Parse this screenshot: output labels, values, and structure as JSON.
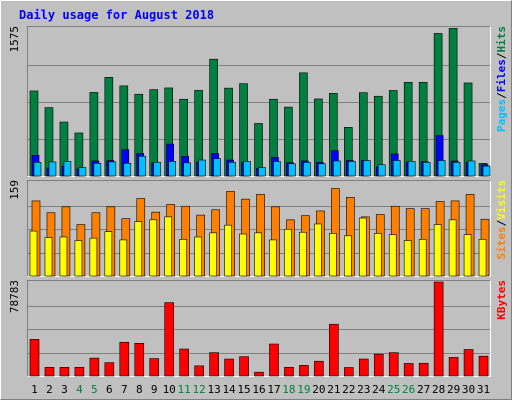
{
  "title": "Daily usage for August 2018",
  "colors": {
    "background": "#C0C0C0",
    "title": "#0000FF",
    "hits": "#008040",
    "files": "#0000FF",
    "pages": "#00C0FF",
    "visits": "#FFFF00",
    "sites": "#FF8000",
    "kbytes": "#FF0000",
    "weekend_day_label": "#008040",
    "weekday_label": "#000000"
  },
  "chart_data": [
    {
      "type": "bar",
      "name": "hits-files-pages",
      "y_max_label": "1575",
      "ylim": [
        0,
        1575
      ],
      "grid": true,
      "legend": "right (vertical)",
      "legend_entries": [
        {
          "text": "Pages",
          "color": "#00C0FF"
        },
        {
          "text": "Files",
          "color": "#0000FF"
        },
        {
          "text": "Hits",
          "color": "#008040"
        }
      ],
      "categories": [
        "1",
        "2",
        "3",
        "4",
        "5",
        "6",
        "7",
        "8",
        "9",
        "10",
        "11",
        "12",
        "13",
        "14",
        "15",
        "16",
        "17",
        "18",
        "19",
        "20",
        "21",
        "22",
        "23",
        "24",
        "25",
        "26",
        "27",
        "28",
        "29",
        "30",
        "31"
      ],
      "series": [
        {
          "name": "Hits",
          "values": [
            905,
            728,
            574,
            458,
            889,
            1050,
            959,
            870,
            919,
            937,
            817,
            911,
            1243,
            935,
            983,
            559,
            817,
            733,
            1098,
            820,
            880,
            518,
            887,
            849,
            910,
            997,
            997,
            1517,
            1571,
            990,
            135
          ]
        },
        {
          "name": "Files",
          "values": [
            220,
            85,
            105,
            75,
            160,
            165,
            280,
            240,
            140,
            340,
            210,
            148,
            240,
            170,
            145,
            80,
            198,
            142,
            160,
            145,
            270,
            165,
            165,
            100,
            235,
            150,
            152,
            430,
            160,
            145,
            120
          ]
        },
        {
          "name": "Pages",
          "values": [
            145,
            150,
            155,
            90,
            135,
            150,
            135,
            210,
            145,
            155,
            140,
            170,
            185,
            145,
            155,
            90,
            155,
            130,
            145,
            130,
            160,
            155,
            165,
            120,
            165,
            155,
            145,
            165,
            145,
            160,
            105
          ]
        }
      ]
    },
    {
      "type": "bar",
      "name": "visits-sites",
      "y_max_label": "159",
      "ylim": [
        0,
        159
      ],
      "grid": true,
      "legend": "right (vertical)",
      "legend_entries": [
        {
          "text": "Sites",
          "color": "#FF8000"
        },
        {
          "text": "Visits",
          "color": "#FFFF00"
        }
      ],
      "categories": [
        "1",
        "2",
        "3",
        "4",
        "5",
        "6",
        "7",
        "8",
        "9",
        "10",
        "11",
        "12",
        "13",
        "14",
        "15",
        "16",
        "17",
        "18",
        "19",
        "20",
        "21",
        "22",
        "23",
        "24",
        "25",
        "26",
        "27",
        "28",
        "29",
        "30",
        "31"
      ],
      "series": [
        {
          "name": "Sites",
          "values": [
            127,
            107,
            117,
            87,
            107,
            117,
            97,
            131,
            108,
            121,
            118,
            103,
            112,
            143,
            130,
            138,
            117,
            95,
            102,
            110,
            148,
            133,
            100,
            104,
            118,
            114,
            114,
            126,
            127,
            138,
            96
          ]
        },
        {
          "name": "Visits",
          "values": [
            76,
            65,
            66,
            60,
            64,
            75,
            61,
            92,
            95,
            100,
            62,
            66,
            73,
            86,
            71,
            73,
            61,
            79,
            74,
            88,
            72,
            68,
            98,
            72,
            70,
            60,
            62,
            87,
            95,
            70,
            62
          ]
        }
      ]
    },
    {
      "type": "bar",
      "name": "kbytes",
      "y_max_label": "78783",
      "ylim": [
        0,
        78783
      ],
      "grid": true,
      "legend": "right (vertical)",
      "legend_entries": [
        {
          "text": "KBytes",
          "color": "#FF0000"
        }
      ],
      "categories": [
        "1",
        "2",
        "3",
        "4",
        "5",
        "6",
        "7",
        "8",
        "9",
        "10",
        "11",
        "12",
        "13",
        "14",
        "15",
        "16",
        "17",
        "18",
        "19",
        "20",
        "21",
        "22",
        "23",
        "24",
        "25",
        "26",
        "27",
        "28",
        "29",
        "30",
        "31"
      ],
      "series": [
        {
          "name": "KBytes",
          "values": [
            30700,
            7250,
            7250,
            7250,
            15000,
            11200,
            28300,
            27400,
            14600,
            61500,
            22600,
            8500,
            19600,
            14200,
            16200,
            3200,
            26800,
            7300,
            8900,
            12400,
            43400,
            7100,
            14200,
            18300,
            19600,
            10500,
            10700,
            78783,
            15600,
            22200,
            16600
          ]
        }
      ]
    }
  ],
  "x_axis": {
    "labels": [
      "1",
      "2",
      "3",
      "4",
      "5",
      "6",
      "7",
      "8",
      "9",
      "10",
      "11",
      "12",
      "13",
      "14",
      "15",
      "16",
      "17",
      "18",
      "19",
      "20",
      "21",
      "22",
      "23",
      "24",
      "25",
      "26",
      "27",
      "28",
      "29",
      "30",
      "31"
    ],
    "weekend_days": [
      "4",
      "5",
      "11",
      "12",
      "18",
      "19",
      "25",
      "26"
    ]
  }
}
